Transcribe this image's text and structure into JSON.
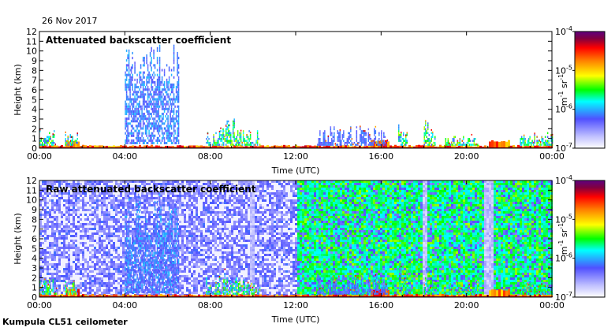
{
  "header": {
    "date": "26 Nov 2017"
  },
  "footer": {
    "instrument": "Kumpula CL51 ceilometer"
  },
  "colors": {
    "colormap": [
      "#ffffff",
      "#c8c8ff",
      "#4040ff",
      "#00c8ff",
      "#00ff80",
      "#40c000",
      "#ffff00",
      "#ff8000",
      "#ff0000",
      "#800000",
      "#600080"
    ],
    "palette_rainbow": [
      "#ffffff",
      "#c0c0ff",
      "#5050ff",
      "#00ffff",
      "#00ff00",
      "#ffff00",
      "#ff8000",
      "#ff0000",
      "#800040",
      "#600080"
    ]
  },
  "chart_data": [
    {
      "type": "heatmap",
      "title": "Attenuated backscatter coefficient",
      "xlabel": "Time (UTC)",
      "ylabel": "Height (km)",
      "xlim": [
        "00:00",
        "24:00"
      ],
      "ylim": [
        0,
        12
      ],
      "x_ticks": [
        "00:00",
        "04:00",
        "08:00",
        "12:00",
        "16:00",
        "20:00",
        "00:00"
      ],
      "y_ticks": [
        "0",
        "1",
        "2",
        "3",
        "4",
        "5",
        "6",
        "7",
        "8",
        "9",
        "10",
        "11",
        "12"
      ],
      "colorbar": {
        "label": "m-1 sr-1",
        "scale": "log",
        "range": [
          1e-07,
          0.0001
        ],
        "ticks": [
          "10-7",
          "10-6",
          "10-5",
          "10-4"
        ]
      },
      "features": [
        {
          "t_start": 0.0,
          "t_end": 24.0,
          "h_top_km": 0.25,
          "level": 0.8,
          "desc": "surface layer"
        },
        {
          "t_start": 4.0,
          "t_end": 6.5,
          "h_top_km": 10.6,
          "level": 0.3,
          "desc": "deep cloud"
        },
        {
          "t_start": 7.8,
          "t_end": 10.3,
          "h_top_km": 2.5,
          "level": 0.55,
          "desc": "low cloud"
        },
        {
          "t_start": 13.0,
          "t_end": 16.3,
          "h_top_km": 2.0,
          "level": 0.3,
          "desc": "low cloud"
        },
        {
          "t_start": 16.8,
          "t_end": 18.5,
          "h_top_km": 3.3,
          "level": 0.55,
          "desc": "cloud"
        }
      ]
    },
    {
      "type": "heatmap",
      "title": "Raw attenuated backscatter coefficient",
      "xlabel": "Time (UTC)",
      "ylabel": "Height (km)",
      "xlim": [
        "00:00",
        "24:00"
      ],
      "ylim": [
        0,
        12
      ],
      "x_ticks": [
        "00:00",
        "04:00",
        "08:00",
        "12:00",
        "16:00",
        "20:00",
        "00:00"
      ],
      "y_ticks": [
        "0",
        "1",
        "2",
        "3",
        "4",
        "5",
        "6",
        "7",
        "8",
        "9",
        "10",
        "11",
        "12"
      ],
      "colorbar": {
        "label": "m-1 sr-1",
        "scale": "log",
        "range": [
          1e-07,
          0.0001
        ],
        "ticks": [
          "10-7",
          "10-6",
          "10-5",
          "10-4"
        ]
      },
      "features": [
        {
          "t_start": 0.0,
          "t_end": 12.0,
          "h_top_km": 12.0,
          "level": 0.22,
          "desc": "noise background (blue)"
        },
        {
          "t_start": 12.0,
          "t_end": 24.0,
          "h_top_km": 12.0,
          "level": 0.45,
          "desc": "noise background (green)"
        },
        {
          "t_start": 0.0,
          "t_end": 24.0,
          "h_top_km": 0.25,
          "level": 0.8,
          "desc": "surface layer"
        },
        {
          "t_start": 4.0,
          "t_end": 6.5,
          "h_top_km": 10.6,
          "level": 0.3,
          "desc": "deep cloud"
        }
      ]
    }
  ]
}
